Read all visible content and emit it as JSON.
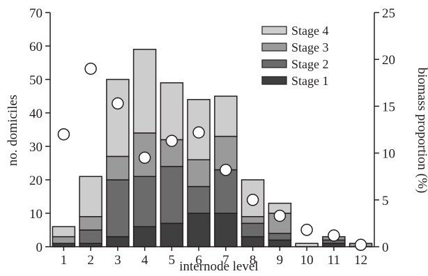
{
  "chart_data": {
    "type": "bar",
    "stacked": true,
    "xlabel": "internode level",
    "ylabel": "no. domiciles",
    "ylabel_right": "biomass proportion (%)",
    "categories": [
      "1",
      "2",
      "3",
      "4",
      "5",
      "6",
      "7",
      "8",
      "9",
      "10",
      "11",
      "12"
    ],
    "ylim": [
      0,
      70
    ],
    "yticks": [
      0,
      10,
      20,
      30,
      40,
      50,
      60,
      70
    ],
    "ylim_right": [
      0,
      25
    ],
    "yticks_right": [
      0,
      5,
      10,
      15,
      20,
      25
    ],
    "series": [
      {
        "name": "Stage 1",
        "color": "#3f3f3f",
        "values": [
          1,
          1,
          3,
          6,
          7,
          10,
          10,
          3,
          2,
          0,
          1,
          0
        ]
      },
      {
        "name": "Stage 2",
        "color": "#6b6b6b",
        "values": [
          0,
          4,
          17,
          15,
          17,
          8,
          13,
          4,
          2,
          0,
          1,
          0
        ]
      },
      {
        "name": "Stage 3",
        "color": "#9a9a9a",
        "values": [
          2,
          4,
          7,
          13,
          8,
          8,
          10,
          2,
          6,
          0,
          1,
          1
        ]
      },
      {
        "name": "Stage 4",
        "color": "#cdcdcd",
        "values": [
          3,
          12,
          23,
          25,
          17,
          18,
          12,
          11,
          3,
          1,
          0,
          0
        ]
      }
    ],
    "biomass_proportion": {
      "marker": "circle-open",
      "values": [
        12.0,
        19.0,
        15.3,
        9.5,
        11.3,
        12.2,
        8.2,
        5.0,
        3.3,
        1.8,
        1.2,
        0.2
      ]
    },
    "legend": {
      "placement": "top-right",
      "order": [
        "Stage 4",
        "Stage 3",
        "Stage 2",
        "Stage 1"
      ]
    },
    "grid": false
  }
}
